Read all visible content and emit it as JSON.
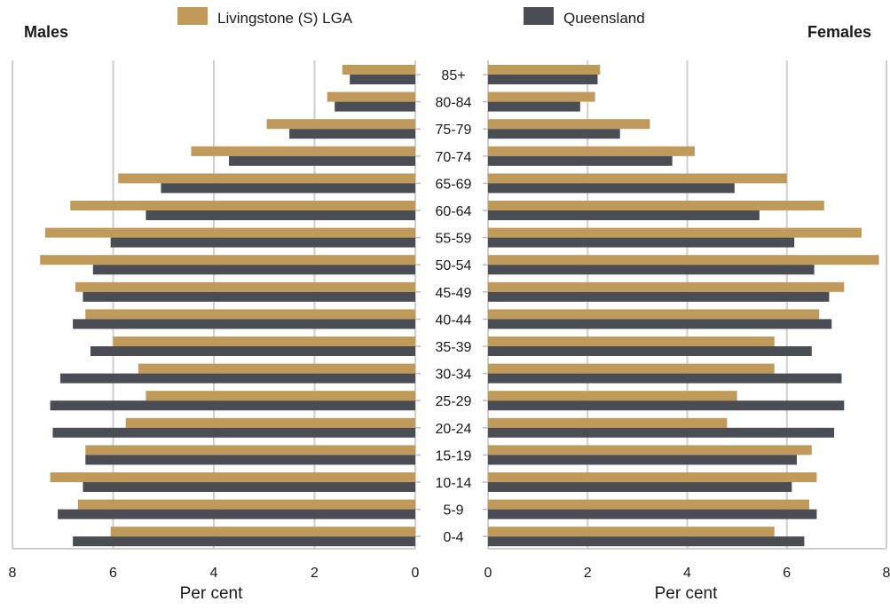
{
  "chart_data": {
    "type": "bar",
    "orientation": "horizontal",
    "layout": "population-pyramid",
    "left_panel_title": "Males",
    "right_panel_title": "Females",
    "xlabel": "Per cent",
    "xlim": [
      0,
      8
    ],
    "xticks": [
      "0",
      "2",
      "4",
      "6",
      "8"
    ],
    "grid": true,
    "legend_placement": "top-center",
    "categories": [
      "85+",
      "80-84",
      "75-79",
      "70-74",
      "65-69",
      "60-64",
      "55-59",
      "50-54",
      "45-49",
      "40-44",
      "35-39",
      "30-34",
      "25-29",
      "20-24",
      "15-19",
      "10-14",
      "5-9",
      "0-4"
    ],
    "series": [
      {
        "name": "Livingstone (S) LGA",
        "color": "#c09a5b",
        "males": [
          1.45,
          1.75,
          2.95,
          4.45,
          5.9,
          6.85,
          7.35,
          7.45,
          6.75,
          6.55,
          6.0,
          5.5,
          5.35,
          5.75,
          6.55,
          7.25,
          6.7,
          6.05
        ],
        "females": [
          2.25,
          2.15,
          3.25,
          4.15,
          6.0,
          6.75,
          7.5,
          7.85,
          7.15,
          6.65,
          5.75,
          5.75,
          5.0,
          4.8,
          6.5,
          6.6,
          6.45,
          5.75
        ]
      },
      {
        "name": "Queensland",
        "color": "#4a4d53",
        "males": [
          1.3,
          1.6,
          2.5,
          3.7,
          5.05,
          5.35,
          6.05,
          6.4,
          6.6,
          6.8,
          6.45,
          7.05,
          7.25,
          7.2,
          6.55,
          6.6,
          7.1,
          6.8
        ],
        "females": [
          2.2,
          1.85,
          2.65,
          3.7,
          4.95,
          5.45,
          6.15,
          6.55,
          6.85,
          6.9,
          6.5,
          7.1,
          7.15,
          6.95,
          6.2,
          6.1,
          6.6,
          6.35
        ]
      }
    ]
  }
}
